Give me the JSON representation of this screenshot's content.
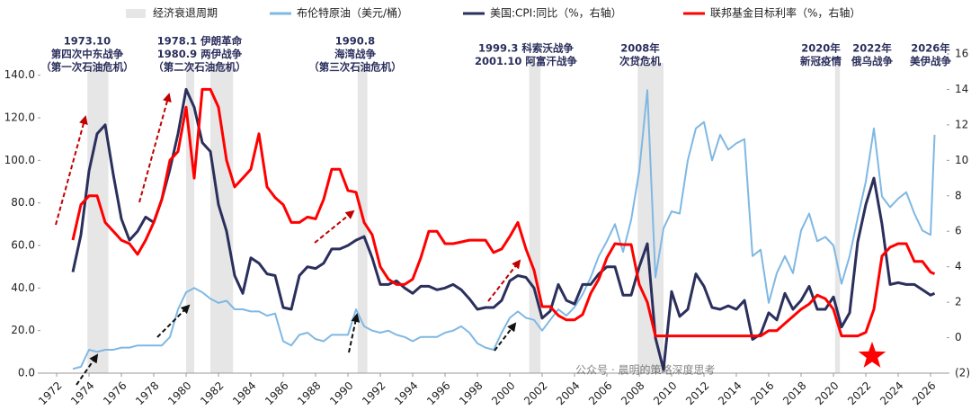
{
  "chart_data": {
    "type": "line",
    "x": [
      1973,
      1973.5,
      1974,
      1974.5,
      1975,
      1975.5,
      1976,
      1976.5,
      1977,
      1977.5,
      1978,
      1978.5,
      1979,
      1979.5,
      1980,
      1980.5,
      1981,
      1981.5,
      1982,
      1982.5,
      1983,
      1983.5,
      1984,
      1984.5,
      1985,
      1985.5,
      1986,
      1986.5,
      1987,
      1987.5,
      1988,
      1988.5,
      1989,
      1989.5,
      1990,
      1990.5,
      1991,
      1991.5,
      1992,
      1992.5,
      1993,
      1993.5,
      1994,
      1994.5,
      1995,
      1995.5,
      1996,
      1996.5,
      1997,
      1997.5,
      1998,
      1998.5,
      1999,
      1999.5,
      2000,
      2000.5,
      2001,
      2001.5,
      2002,
      2002.5,
      2003,
      2003.5,
      2004,
      2004.5,
      2005,
      2005.5,
      2006,
      2006.5,
      2007,
      2007.5,
      2008,
      2008.5,
      2009,
      2009.5,
      2010,
      2010.5,
      2011,
      2011.5,
      2012,
      2012.5,
      2013,
      2013.5,
      2014,
      2014.5,
      2015,
      2015.5,
      2016,
      2016.5,
      2017,
      2017.5,
      2018,
      2018.5,
      2019,
      2019.5,
      2020,
      2020.5,
      2021,
      2021.5,
      2022,
      2022.5,
      2023,
      2023.5,
      2024,
      2024.5,
      2025,
      2025.5,
      2026,
      2026.25
    ],
    "series": [
      {
        "name": "布伦特原油（美元/桶）",
        "color": "#7fb8e3",
        "axis": "y",
        "values": [
          2,
          3,
          11,
          10,
          11,
          11,
          12,
          12,
          13,
          13,
          13,
          13,
          17,
          30,
          38,
          40,
          38,
          35,
          33,
          34,
          30,
          30,
          29,
          29,
          27,
          28,
          15,
          13,
          18,
          19,
          16,
          15,
          18,
          18,
          18,
          30,
          22,
          20,
          19,
          20,
          18,
          17,
          15,
          17,
          17,
          17,
          19,
          20,
          22,
          19,
          14,
          12,
          11,
          19,
          26,
          29,
          26,
          25,
          20,
          25,
          30,
          27,
          31,
          37,
          45,
          55,
          62,
          70,
          57,
          72,
          95,
          133,
          45,
          68,
          76,
          75,
          100,
          115,
          118,
          100,
          112,
          105,
          108,
          110,
          55,
          58,
          33,
          47,
          55,
          47,
          67,
          75,
          62,
          64,
          60,
          42,
          55,
          73,
          90,
          115,
          83,
          78,
          82,
          85,
          75,
          67,
          65,
          112
        ]
      },
      {
        "name": "美国:CPI:同比（%，右轴）",
        "color": "#2b2f5c",
        "axis": "y2",
        "values": [
          3.7,
          5.8,
          9.4,
          11.5,
          12.0,
          9.2,
          6.7,
          5.5,
          6.0,
          6.8,
          6.5,
          7.8,
          9.5,
          11.5,
          14.0,
          13.0,
          11.0,
          10.5,
          7.5,
          6.0,
          3.5,
          2.5,
          4.5,
          4.2,
          3.6,
          3.5,
          1.7,
          1.6,
          3.5,
          4.0,
          3.9,
          4.2,
          5.0,
          5.0,
          5.2,
          5.5,
          5.7,
          4.5,
          3.0,
          3.0,
          3.2,
          2.8,
          2.5,
          2.9,
          2.9,
          2.7,
          2.8,
          3.0,
          2.7,
          2.2,
          1.6,
          1.7,
          1.7,
          2.1,
          3.2,
          3.5,
          3.4,
          2.8,
          1.1,
          1.5,
          3.0,
          2.1,
          1.9,
          3.0,
          3.0,
          3.6,
          4.0,
          4.0,
          2.4,
          2.4,
          4.0,
          5.3,
          0.0,
          -1.8,
          2.6,
          1.2,
          1.6,
          3.6,
          2.9,
          1.7,
          1.6,
          1.8,
          1.6,
          2.1,
          -0.1,
          0.2,
          1.4,
          1.0,
          2.5,
          1.6,
          2.1,
          2.9,
          1.6,
          1.6,
          2.3,
          0.6,
          1.4,
          5.4,
          7.5,
          9.0,
          6.4,
          3.0,
          3.1,
          3.0,
          3.0,
          2.7,
          2.4,
          2.5
        ]
      },
      {
        "name": "联邦基金目标利率（%，右轴）",
        "color": "#ff0000",
        "axis": "y2",
        "values": [
          5.5,
          7.5,
          8.0,
          8.0,
          6.5,
          6.0,
          5.5,
          5.3,
          4.7,
          5.5,
          6.5,
          7.8,
          10.0,
          10.5,
          13.0,
          9.0,
          14.0,
          14.0,
          13.0,
          10.0,
          8.5,
          9.0,
          9.5,
          11.5,
          8.5,
          7.9,
          7.5,
          6.5,
          6.5,
          6.8,
          6.7,
          7.8,
          9.5,
          9.5,
          8.3,
          8.2,
          6.5,
          5.8,
          4.0,
          3.3,
          3.0,
          3.0,
          3.3,
          4.5,
          6.0,
          6.0,
          5.3,
          5.3,
          5.4,
          5.5,
          5.5,
          5.5,
          4.8,
          5.0,
          5.7,
          6.5,
          5.0,
          3.8,
          1.75,
          1.75,
          1.25,
          1.0,
          1.0,
          1.3,
          2.5,
          3.3,
          4.5,
          5.3,
          5.25,
          5.25,
          3.0,
          2.0,
          0.1,
          0.1,
          0.1,
          0.1,
          0.1,
          0.1,
          0.1,
          0.1,
          0.1,
          0.1,
          0.1,
          0.1,
          0.1,
          0.1,
          0.4,
          0.4,
          0.8,
          1.2,
          1.6,
          1.9,
          2.4,
          2.2,
          1.6,
          0.1,
          0.1,
          0.1,
          0.3,
          1.6,
          4.6,
          5.1,
          5.3,
          5.3,
          4.3,
          4.3,
          3.7,
          3.6
        ]
      }
    ],
    "recessions": {
      "name": "经济衰退周期",
      "color": "#e6e6e6",
      "periods": [
        [
          1973.9,
          1975.2
        ],
        [
          1980.0,
          1980.5
        ],
        [
          1981.5,
          1982.9
        ],
        [
          1990.6,
          1991.2
        ],
        [
          2001.2,
          2001.9
        ],
        [
          2007.9,
          2009.5
        ],
        [
          2020.1,
          2020.4
        ]
      ]
    },
    "xlim": [
      1971,
      2027
    ],
    "xticks": [
      1972,
      1974,
      1976,
      1978,
      1980,
      1982,
      1984,
      1986,
      1988,
      1990,
      1992,
      1994,
      1996,
      1998,
      2000,
      2002,
      2004,
      2006,
      2008,
      2010,
      2012,
      2014,
      2016,
      2018,
      2020,
      2022,
      2024,
      2026
    ],
    "ylim": [
      0,
      150
    ],
    "yticks": [
      {
        "value": 0,
        "label": "0.0"
      },
      {
        "value": 20,
        "label": "20.0"
      },
      {
        "value": 40,
        "label": "40.0"
      },
      {
        "value": 60,
        "label": "60.0"
      },
      {
        "value": 80,
        "label": "80.0"
      },
      {
        "value": 100,
        "label": "100.0"
      },
      {
        "value": 120,
        "label": "120.0"
      },
      {
        "value": 140,
        "label": "140.0"
      }
    ],
    "y2lim": [
      -2,
      16
    ],
    "y2ticks": [
      {
        "value": -2,
        "label": "(2)"
      },
      0,
      2,
      4,
      6,
      8,
      10,
      12,
      14,
      16
    ],
    "annotations": [
      [
        "1973.10",
        "第四次中东战争",
        "（第一次石油危机）"
      ],
      [
        "1978.1 伊朗革命",
        "1980.9 两伊战争",
        "（第二次石油危机）"
      ],
      [
        "1990.8",
        "海湾战争",
        "（第三次石油危机）"
      ],
      [
        "1999.3 科索沃战争",
        "2001.10 阿富汗战争"
      ],
      [
        "2008年",
        "次贷危机"
      ],
      [
        "2020年",
        "新冠疫情"
      ],
      [
        "2022年",
        "俄乌战争"
      ],
      [
        "2026年",
        "美伊战争"
      ]
    ],
    "watermark": "公众号 · 晨明的策略深度思考"
  }
}
